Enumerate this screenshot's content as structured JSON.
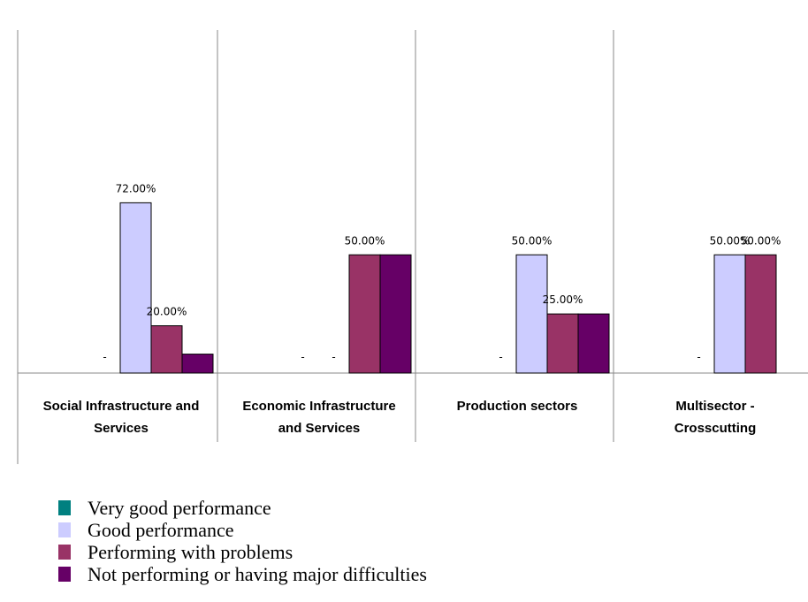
{
  "chart_data": {
    "type": "bar",
    "categories": [
      [
        "Social Infrastructure and",
        "Services"
      ],
      [
        "Economic Infrastructure",
        "and Services"
      ],
      [
        "Production sectors"
      ],
      [
        "Multisector -",
        "Crosscutting"
      ]
    ],
    "series": [
      {
        "name": "Very good performance",
        "color": "#008080",
        "values": [
          0,
          0,
          0,
          0
        ],
        "labels": [
          "-",
          "-",
          "-",
          "-"
        ]
      },
      {
        "name": "Good performance",
        "color": "#CCCCFF",
        "values": [
          72,
          0,
          50,
          50
        ],
        "labels": [
          "72.00%",
          "-",
          "50.00%",
          "50.00%"
        ]
      },
      {
        "name": "Performing with problems",
        "color": "#993366",
        "values": [
          20,
          50,
          25,
          50
        ],
        "labels": [
          "20.00%",
          "50.00%",
          "25.00%",
          "50.00%"
        ]
      },
      {
        "name": "Not performing or having major difficulties",
        "color": "#660066",
        "values": [
          8,
          50,
          25,
          null
        ],
        "labels": [
          "",
          "",
          "",
          ""
        ]
      }
    ],
    "ylim": [
      0,
      100
    ],
    "grid": "vertical category separators",
    "legend_position": "bottom-left"
  }
}
